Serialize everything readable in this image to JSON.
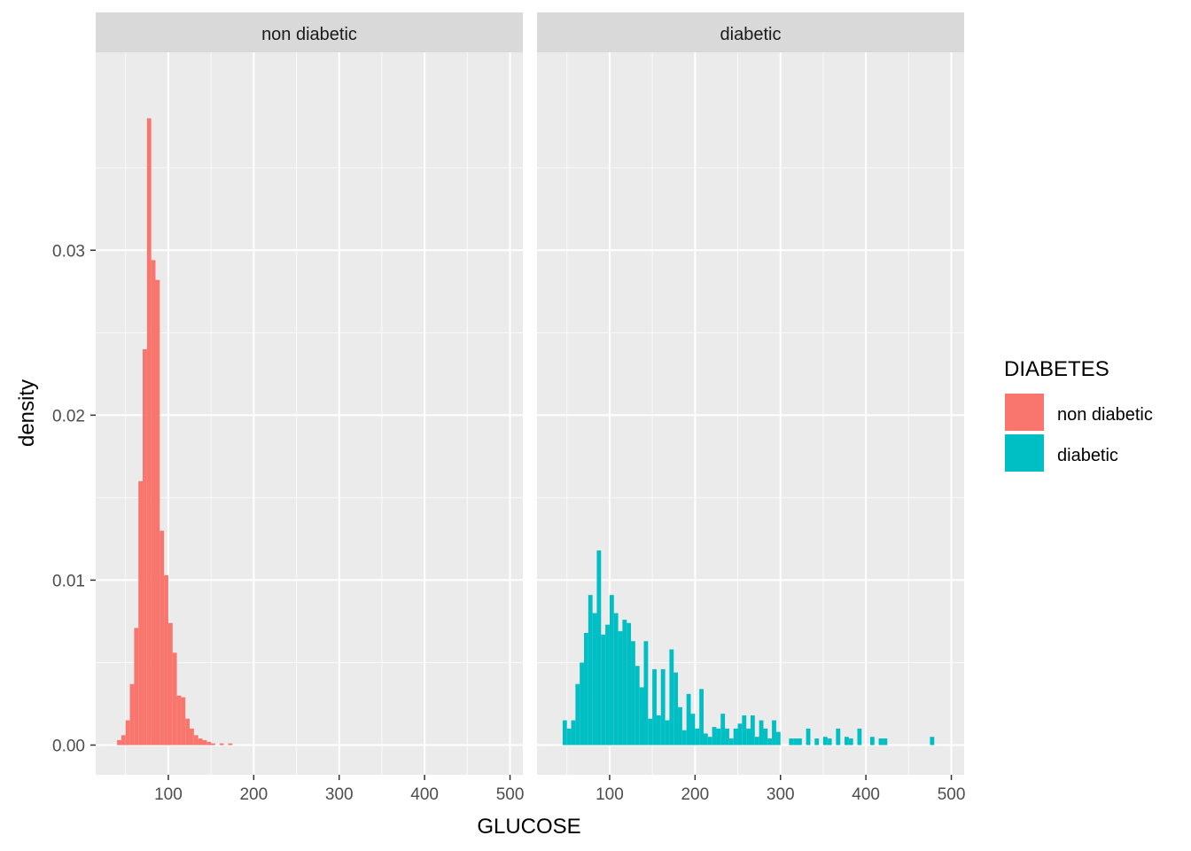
{
  "chart_data": {
    "type": "bar",
    "subtype": "faceted-histogram",
    "xlabel": "GLUCOSE",
    "ylabel": "density",
    "xlim": [
      15,
      515
    ],
    "ylim": [
      -0.0018,
      0.042
    ],
    "x_ticks": [
      100,
      200,
      300,
      400,
      500
    ],
    "x_tick_labels": [
      "100",
      "200",
      "300",
      "400",
      "500"
    ],
    "y_ticks": [
      0.0,
      0.01,
      0.02,
      0.03
    ],
    "y_tick_labels": [
      "0.00",
      "0.01",
      "0.02",
      "0.03"
    ],
    "grid": true,
    "bin_width": 5,
    "legend": {
      "title": "DIABETES",
      "position": "right",
      "entries": [
        {
          "label": "non diabetic",
          "color": "#F8766D"
        },
        {
          "label": "diabetic",
          "color": "#00BFC4"
        }
      ]
    },
    "facets": [
      {
        "label": "non diabetic",
        "color": "#F8766D",
        "bins": [
          [
            40,
            0.0003
          ],
          [
            45,
            0.0006
          ],
          [
            50,
            0.0015
          ],
          [
            55,
            0.0037
          ],
          [
            60,
            0.0071
          ],
          [
            65,
            0.016
          ],
          [
            70,
            0.024
          ],
          [
            75,
            0.038
          ],
          [
            80,
            0.0294
          ],
          [
            85,
            0.0282
          ],
          [
            90,
            0.013
          ],
          [
            95,
            0.0103
          ],
          [
            100,
            0.0074
          ],
          [
            105,
            0.0056
          ],
          [
            110,
            0.003
          ],
          [
            115,
            0.0029
          ],
          [
            120,
            0.0016
          ],
          [
            125,
            0.001
          ],
          [
            130,
            0.0006
          ],
          [
            135,
            0.0004
          ],
          [
            140,
            0.0003
          ],
          [
            145,
            0.0002
          ],
          [
            150,
            0.0001
          ],
          [
            160,
            0.0001
          ],
          [
            170,
            0.0001
          ]
        ]
      },
      {
        "label": "diabetic",
        "color": "#00BFC4",
        "bins": [
          [
            45,
            0.0015
          ],
          [
            50,
            0.001
          ],
          [
            55,
            0.0015
          ],
          [
            60,
            0.0037
          ],
          [
            65,
            0.005
          ],
          [
            70,
            0.0068
          ],
          [
            75,
            0.0091
          ],
          [
            80,
            0.008
          ],
          [
            85,
            0.0118
          ],
          [
            90,
            0.0067
          ],
          [
            95,
            0.0073
          ],
          [
            100,
            0.0091
          ],
          [
            105,
            0.008
          ],
          [
            110,
            0.0069
          ],
          [
            115,
            0.0076
          ],
          [
            120,
            0.0074
          ],
          [
            125,
            0.0063
          ],
          [
            130,
            0.0048
          ],
          [
            135,
            0.0035
          ],
          [
            140,
            0.0063
          ],
          [
            145,
            0.0016
          ],
          [
            150,
            0.0046
          ],
          [
            155,
            0.0018
          ],
          [
            160,
            0.0046
          ],
          [
            165,
            0.0015
          ],
          [
            170,
            0.0058
          ],
          [
            175,
            0.0044
          ],
          [
            180,
            0.0023
          ],
          [
            185,
            0.0009
          ],
          [
            190,
            0.0031
          ],
          [
            195,
            0.0019
          ],
          [
            200,
            0.001
          ],
          [
            205,
            0.0034
          ],
          [
            210,
            0.0007
          ],
          [
            215,
            0.0005
          ],
          [
            220,
            0.0011
          ],
          [
            225,
            0.001
          ],
          [
            230,
            0.0019
          ],
          [
            235,
            0.001
          ],
          [
            240,
            0.0004
          ],
          [
            245,
            0.001
          ],
          [
            250,
            0.0013
          ],
          [
            255,
            0.0018
          ],
          [
            260,
            0.001
          ],
          [
            265,
            0.0018
          ],
          [
            270,
            0.0005
          ],
          [
            275,
            0.0015
          ],
          [
            280,
            0.001
          ],
          [
            285,
            0.0004
          ],
          [
            290,
            0.0015
          ],
          [
            295,
            0.0008
          ],
          [
            310,
            0.0004
          ],
          [
            315,
            0.0004
          ],
          [
            320,
            0.0004
          ],
          [
            330,
            0.001
          ],
          [
            340,
            0.0004
          ],
          [
            350,
            0.0005
          ],
          [
            355,
            0.0004
          ],
          [
            365,
            0.001
          ],
          [
            375,
            0.0005
          ],
          [
            380,
            0.0004
          ],
          [
            390,
            0.001
          ],
          [
            405,
            0.0005
          ],
          [
            415,
            0.0004
          ],
          [
            420,
            0.0004
          ],
          [
            475,
            0.0005
          ]
        ]
      }
    ]
  }
}
